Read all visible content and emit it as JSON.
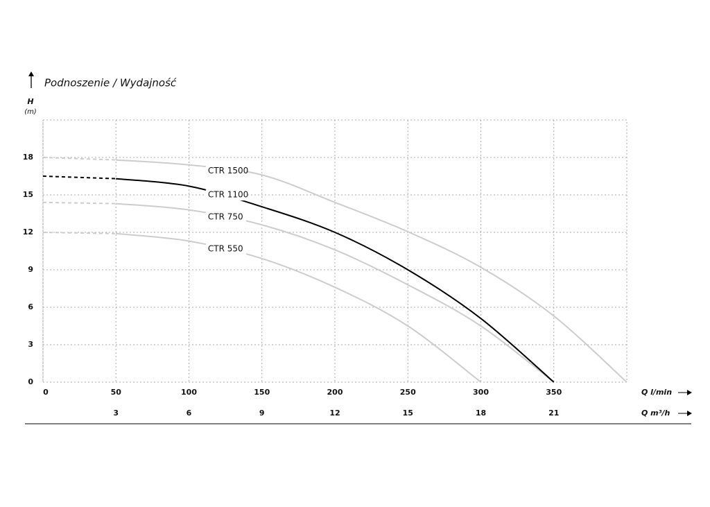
{
  "chart_data": {
    "type": "line",
    "title": "Podnoszenie / Wydajność",
    "y_label": "H",
    "y_unit": "(m)",
    "x_label": "Q l/min",
    "x2_label": "Q m³/h",
    "x": [
      0,
      50,
      100,
      150,
      200,
      250,
      300,
      350,
      400
    ],
    "xlim": [
      0,
      400
    ],
    "xticks": [
      0,
      50,
      100,
      150,
      200,
      250,
      300,
      350
    ],
    "x2lim": [
      0,
      24
    ],
    "x2ticks": [
      3,
      6,
      9,
      12,
      15,
      18,
      21
    ],
    "ylim": [
      0,
      21
    ],
    "yticks": [
      0,
      3,
      6,
      9,
      12,
      15,
      18
    ],
    "grid": true,
    "dashed_below_x": 50,
    "series": [
      {
        "name": "CTR 1500",
        "color": "#cccccc",
        "values": [
          18,
          17.8,
          17.4,
          16.6,
          14.4,
          12.05,
          9.2,
          5.3,
          0
        ]
      },
      {
        "name": "CTR 1100",
        "color": "#000000",
        "values": [
          16.5,
          16.3,
          15.7,
          14.05,
          12.0,
          9.0,
          5.1,
          0,
          null
        ]
      },
      {
        "name": "CTR 750",
        "color": "#cccccc",
        "values": [
          14.4,
          14.3,
          13.8,
          12.6,
          10.6,
          7.8,
          4.5,
          0,
          null
        ]
      },
      {
        "name": "CTR 550",
        "color": "#cccccc",
        "values": [
          12,
          11.9,
          11.3,
          9.9,
          7.6,
          4.5,
          0,
          null,
          null
        ]
      }
    ]
  }
}
